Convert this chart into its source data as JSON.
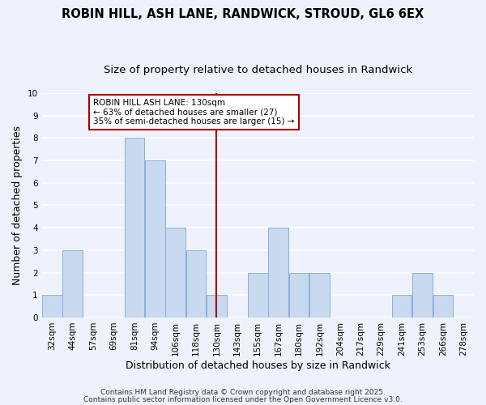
{
  "title": "ROBIN HILL, ASH LANE, RANDWICK, STROUD, GL6 6EX",
  "subtitle": "Size of property relative to detached houses in Randwick",
  "xlabel": "Distribution of detached houses by size in Randwick",
  "ylabel": "Number of detached properties",
  "bin_labels": [
    "32sqm",
    "44sqm",
    "57sqm",
    "69sqm",
    "81sqm",
    "94sqm",
    "106sqm",
    "118sqm",
    "130sqm",
    "143sqm",
    "155sqm",
    "167sqm",
    "180sqm",
    "192sqm",
    "204sqm",
    "217sqm",
    "229sqm",
    "241sqm",
    "253sqm",
    "266sqm",
    "278sqm"
  ],
  "bar_heights": [
    1,
    3,
    0,
    0,
    8,
    7,
    4,
    3,
    1,
    0,
    2,
    4,
    2,
    2,
    0,
    0,
    0,
    1,
    2,
    1,
    0
  ],
  "bar_color": "#c9d9f0",
  "bar_edge_color": "#8ab0d8",
  "vline_x_index": 8,
  "vline_color": "#aa0000",
  "ylim": [
    0,
    10
  ],
  "yticks": [
    0,
    1,
    2,
    3,
    4,
    5,
    6,
    7,
    8,
    9,
    10
  ],
  "annotation_title": "ROBIN HILL ASH LANE: 130sqm",
  "annotation_line1": "← 63% of detached houses are smaller (27)",
  "annotation_line2": "35% of semi-detached houses are larger (15) →",
  "annotation_box_color": "#ffffff",
  "annotation_box_edge": "#aa0000",
  "footer_line1": "Contains HM Land Registry data © Crown copyright and database right 2025.",
  "footer_line2": "Contains public sector information licensed under the Open Government Licence v3.0.",
  "background_color": "#eef2fc",
  "grid_color": "#ffffff",
  "title_fontsize": 10.5,
  "subtitle_fontsize": 9.5,
  "axis_label_fontsize": 9,
  "tick_fontsize": 7.5,
  "footer_fontsize": 6.5,
  "annotation_fontsize": 7.5
}
